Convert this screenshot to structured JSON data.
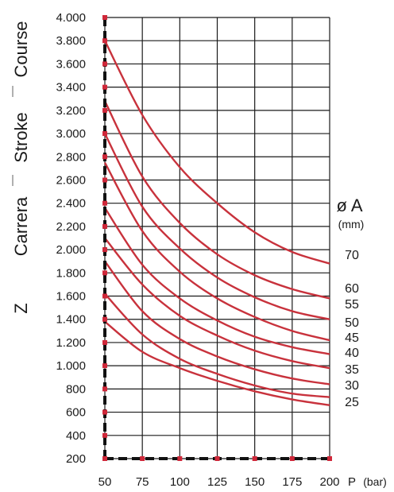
{
  "chart_data": {
    "type": "line",
    "title": "",
    "ylabel": {
      "parts": [
        "Z",
        "Carrera",
        "Stroke",
        "Course"
      ]
    },
    "xlabel": {
      "symbol": "P",
      "unit": "(bar)"
    },
    "legend_title": {
      "symbol": "ø A",
      "unit": "(mm)"
    },
    "x_ticks": [
      "50",
      "75",
      "100",
      "125",
      "150",
      "175",
      "200"
    ],
    "y_ticks": [
      "200",
      "400",
      "600",
      "800",
      "1.000",
      "1.200",
      "1.400",
      "1.600",
      "1.800",
      "2.000",
      "2.200",
      "2.400",
      "2.600",
      "2.800",
      "3.000",
      "3.200",
      "3.400",
      "3.600",
      "3.800",
      "4.000"
    ],
    "xlim": [
      50,
      200
    ],
    "ylim": [
      200,
      4000
    ],
    "grid": true,
    "line_color": "#c8323c",
    "marker_color": "#d0283a",
    "series": [
      {
        "name": "70",
        "x": [
          50,
          75,
          100,
          125,
          150,
          175,
          200
        ],
        "y": [
          3800,
          3160,
          2710,
          2400,
          2150,
          1980,
          1880
        ]
      },
      {
        "name": "60",
        "x": [
          50,
          75,
          100,
          125,
          150,
          175,
          200
        ],
        "y": [
          3280,
          2630,
          2230,
          1960,
          1780,
          1660,
          1580
        ]
      },
      {
        "name": "55",
        "x": [
          50,
          75,
          100,
          125,
          150,
          175,
          200
        ],
        "y": [
          3000,
          2370,
          2010,
          1760,
          1590,
          1470,
          1400
        ]
      },
      {
        "name": "50",
        "x": [
          50,
          75,
          100,
          125,
          150,
          175,
          200
        ],
        "y": [
          2750,
          2160,
          1810,
          1580,
          1420,
          1300,
          1220
        ]
      },
      {
        "name": "45",
        "x": [
          50,
          75,
          100,
          125,
          150,
          175,
          200
        ],
        "y": [
          2360,
          1870,
          1580,
          1390,
          1250,
          1160,
          1100
        ]
      },
      {
        "name": "40",
        "x": [
          50,
          75,
          100,
          125,
          150,
          175,
          200
        ],
        "y": [
          2100,
          1700,
          1430,
          1260,
          1130,
          1040,
          980
        ]
      },
      {
        "name": "35",
        "x": [
          50,
          75,
          100,
          125,
          150,
          175,
          200
        ],
        "y": [
          1900,
          1470,
          1230,
          1080,
          970,
          890,
          840
        ]
      },
      {
        "name": "30",
        "x": [
          50,
          75,
          100,
          125,
          150,
          175,
          200
        ],
        "y": [
          1620,
          1270,
          1060,
          930,
          830,
          760,
          730
        ]
      },
      {
        "name": "25",
        "x": [
          50,
          75,
          100,
          125,
          150,
          175,
          200
        ],
        "y": [
          1380,
          1120,
          980,
          870,
          780,
          710,
          660
        ]
      }
    ]
  }
}
